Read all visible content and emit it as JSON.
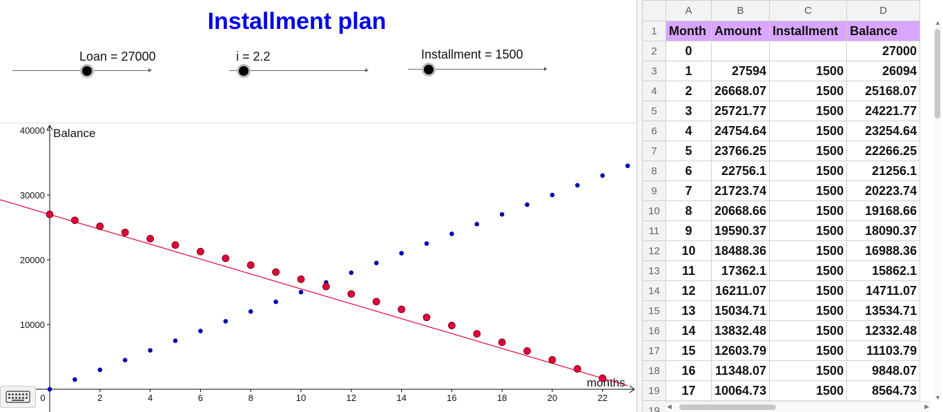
{
  "title": "Installment plan",
  "sliders": [
    {
      "label": "Loan = 27000",
      "fraction": 0.54
    },
    {
      "label": "i = 2.2",
      "fraction": 0.11
    },
    {
      "label": "Installment = 1500",
      "fraction": 0.15
    }
  ],
  "chart_data": {
    "type": "scatter",
    "xlabel": "months",
    "ylabel": "Balance",
    "xlim": [
      -2,
      23
    ],
    "ylim": [
      -3500,
      40000
    ],
    "x_ticks": [
      0,
      2,
      4,
      6,
      8,
      10,
      12,
      14,
      16,
      18,
      20,
      22
    ],
    "y_ticks": [
      10000,
      20000,
      30000,
      40000
    ],
    "grid": false,
    "series": [
      {
        "color": "#e0003c",
        "x": [
          0,
          1,
          2,
          3,
          4,
          5,
          6,
          7,
          8,
          9,
          10,
          11,
          12,
          13,
          14,
          15,
          16,
          17,
          18,
          19,
          20,
          21,
          22
        ],
        "y": [
          27000,
          26094,
          25168.07,
          24221.77,
          23254.64,
          22266.25,
          21256.1,
          20223.74,
          19168.66,
          18090.37,
          16988.36,
          15862.1,
          14711.07,
          13534.71,
          12332.48,
          11103.79,
          9848.07,
          8564.73,
          7253.16,
          5912.73,
          4542.81,
          3142.75,
          1711.88
        ]
      },
      {
        "color": "#0000b0",
        "x": [
          0,
          1,
          2,
          3,
          4,
          5,
          6,
          7,
          8,
          9,
          10,
          11,
          12,
          13,
          14,
          15,
          16,
          17,
          18,
          19,
          20,
          21,
          22,
          23
        ],
        "y": [
          0,
          1500,
          3000,
          4500,
          6000,
          7500,
          9000,
          10500,
          12000,
          13500,
          15000,
          16500,
          18000,
          19500,
          21000,
          22500,
          24000,
          25500,
          27000,
          28500,
          30000,
          31500,
          33000,
          34500
        ]
      }
    ],
    "trend_line": {
      "color": "#e0003c",
      "intercept": 27000,
      "slope": -1150
    }
  },
  "sheet": {
    "col_headers": [
      "A",
      "B",
      "C",
      "D"
    ],
    "row_numbers": [
      "1",
      "2",
      "3",
      "4",
      "5",
      "6",
      "7",
      "8",
      "9",
      "10",
      "11",
      "12",
      "13",
      "14",
      "15",
      "16",
      "17",
      "18",
      "19"
    ],
    "header": [
      "Month",
      "Amount",
      "Installment",
      "Balance"
    ],
    "rows": [
      [
        "0",
        "",
        "",
        "27000"
      ],
      [
        "1",
        "27594",
        "1500",
        "26094"
      ],
      [
        "2",
        "26668.07",
        "1500",
        "25168.07"
      ],
      [
        "3",
        "25721.77",
        "1500",
        "24221.77"
      ],
      [
        "4",
        "24754.64",
        "1500",
        "23254.64"
      ],
      [
        "5",
        "23766.25",
        "1500",
        "22266.25"
      ],
      [
        "6",
        "22756.1",
        "1500",
        "21256.1"
      ],
      [
        "7",
        "21723.74",
        "1500",
        "20223.74"
      ],
      [
        "8",
        "20668.66",
        "1500",
        "19168.66"
      ],
      [
        "9",
        "19590.37",
        "1500",
        "18090.37"
      ],
      [
        "10",
        "18488.36",
        "1500",
        "16988.36"
      ],
      [
        "11",
        "17362.1",
        "1500",
        "15862.1"
      ],
      [
        "12",
        "16211.07",
        "1500",
        "14711.07"
      ],
      [
        "13",
        "15034.71",
        "1500",
        "13534.71"
      ],
      [
        "14",
        "13832.48",
        "1500",
        "12332.48"
      ],
      [
        "15",
        "12603.79",
        "1500",
        "11103.79"
      ],
      [
        "16",
        "11348.07",
        "1500",
        "9848.07"
      ],
      [
        "17",
        "10064.73",
        "1500",
        "8564.73"
      ]
    ]
  },
  "icons": {
    "keyboard": "keyboard-icon"
  }
}
